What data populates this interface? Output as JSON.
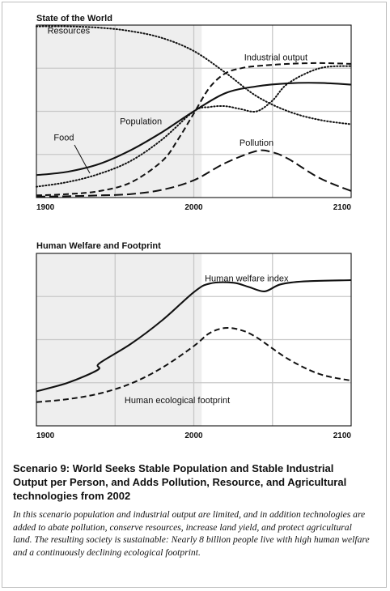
{
  "colors": {
    "shade": "#eeeeee",
    "grid": "#c8c8c8",
    "line": "#111111"
  },
  "caption": {
    "title": "Scenario 9: World Seeks Stable Population and Stable Industrial Output per Person, and Adds Pollution, Resource, and Agricultural technologies from 2002",
    "body": "In this scenario population and industrial output are limited, and in addition technologies are added to abate pollution, conserve resources, increase land yield, and protect agricultural land. The resulting society is sustainable: Nearly 8 billion people live with high human welfare and a continuously declining ecological footprint."
  },
  "chart_data": [
    {
      "type": "line",
      "title": "State of the World",
      "xlim": [
        1900,
        2100
      ],
      "ylim": [
        0,
        4
      ],
      "xticks": [
        "1900",
        "2000",
        "2100"
      ],
      "grid": true,
      "shaded_range": [
        1900,
        2005
      ],
      "series": [
        {
          "name": "Resources",
          "style": "dotted",
          "label_x": 1907,
          "label_y": 3.8,
          "x": [
            1900,
            1920,
            1940,
            1960,
            1980,
            2000,
            2020,
            2040,
            2060,
            2080,
            2100
          ],
          "y": [
            3.97,
            3.97,
            3.94,
            3.86,
            3.7,
            3.4,
            2.9,
            2.35,
            2.0,
            1.8,
            1.7
          ]
        },
        {
          "name": "Industrial output",
          "style": "dashed",
          "label_x": 2032,
          "label_y": 3.18,
          "x": [
            1900,
            1920,
            1940,
            1960,
            1980,
            1990,
            2000,
            2010,
            2020,
            2030,
            2040,
            2060,
            2080,
            2100
          ],
          "y": [
            0.05,
            0.08,
            0.15,
            0.35,
            0.85,
            1.35,
            1.95,
            2.55,
            2.88,
            3.0,
            3.05,
            3.1,
            3.12,
            3.1
          ]
        },
        {
          "name": "Population",
          "style": "solid",
          "label_x": 1953,
          "label_y": 1.7,
          "x": [
            1900,
            1920,
            1940,
            1960,
            1980,
            2000,
            2020,
            2040,
            2060,
            2080,
            2100
          ],
          "y": [
            0.52,
            0.6,
            0.78,
            1.1,
            1.52,
            2.0,
            2.42,
            2.58,
            2.65,
            2.66,
            2.62
          ]
        },
        {
          "name": "Food",
          "style": "dotted",
          "label_x": 1911,
          "label_y": 1.32,
          "x": [
            1900,
            1920,
            1940,
            1960,
            1980,
            2000,
            2010,
            2020,
            2030,
            2040,
            2050,
            2060,
            2080,
            2100
          ],
          "y": [
            0.25,
            0.36,
            0.55,
            0.85,
            1.35,
            2.0,
            2.1,
            2.12,
            2.05,
            2.0,
            2.25,
            2.65,
            3.0,
            3.05
          ]
        },
        {
          "name": "Pollution",
          "style": "longdash",
          "label_x": 2029,
          "label_y": 1.2,
          "x": [
            1900,
            1920,
            1940,
            1960,
            1980,
            2000,
            2020,
            2040,
            2050,
            2060,
            2080,
            2100
          ],
          "y": [
            0.02,
            0.03,
            0.05,
            0.08,
            0.18,
            0.4,
            0.8,
            1.08,
            1.05,
            0.9,
            0.45,
            0.15
          ]
        }
      ]
    },
    {
      "type": "line",
      "title": "Human Welfare and Footprint",
      "xlim": [
        1900,
        2100
      ],
      "ylim": [
        0,
        4
      ],
      "xticks": [
        "1900",
        "2000",
        "2100"
      ],
      "grid": true,
      "shaded_range": [
        1900,
        2005
      ],
      "series": [
        {
          "name": "Human welfare index",
          "style": "solid",
          "label_x": 2007,
          "label_y": 3.35,
          "x": [
            1900,
            1920,
            1939,
            1940,
            1960,
            1980,
            2000,
            2010,
            2025,
            2035,
            2045,
            2055,
            2070,
            2100
          ],
          "y": [
            0.8,
            1.0,
            1.3,
            1.45,
            1.9,
            2.45,
            3.1,
            3.3,
            3.32,
            3.22,
            3.12,
            3.28,
            3.35,
            3.38
          ]
        },
        {
          "name": "Human ecological footprint",
          "style": "dashed",
          "label_x": 1956,
          "label_y": 0.53,
          "x": [
            1900,
            1920,
            1940,
            1960,
            1980,
            2000,
            2010,
            2020,
            2030,
            2040,
            2060,
            2080,
            2100
          ],
          "y": [
            0.55,
            0.62,
            0.75,
            0.98,
            1.35,
            1.85,
            2.15,
            2.27,
            2.22,
            2.05,
            1.55,
            1.2,
            1.05
          ]
        }
      ]
    }
  ]
}
